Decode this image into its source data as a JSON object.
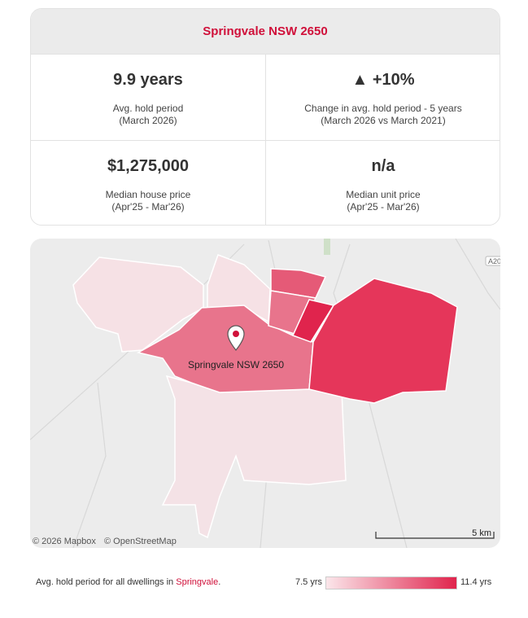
{
  "header": {
    "title": "Springvale NSW 2650"
  },
  "stats": [
    {
      "value": "9.9 years",
      "label": "Avg. hold period",
      "period": "(March 2026)"
    },
    {
      "value": "▲ +10%",
      "label": "Change in avg. hold period - 5 years",
      "period": "(March 2026 vs March 2021)"
    },
    {
      "value": "$1,275,000",
      "label": "Median house price",
      "period": "(Apr'25 - Mar'26)"
    },
    {
      "value": "n/a",
      "label": "Median unit price",
      "period": "(Apr'25 - Mar'26)"
    }
  ],
  "map": {
    "label": "Springvale NSW 2650",
    "road_label": "A20",
    "attribution": [
      "© 2026 Mapbox",
      "© OpenStreetMap"
    ],
    "scale": "5 km"
  },
  "legend": {
    "text": "Avg. hold period for all dwellings in ",
    "place": "Springvale",
    "suffix": ".",
    "min": "7.5 yrs",
    "max": "11.4 yrs"
  }
}
